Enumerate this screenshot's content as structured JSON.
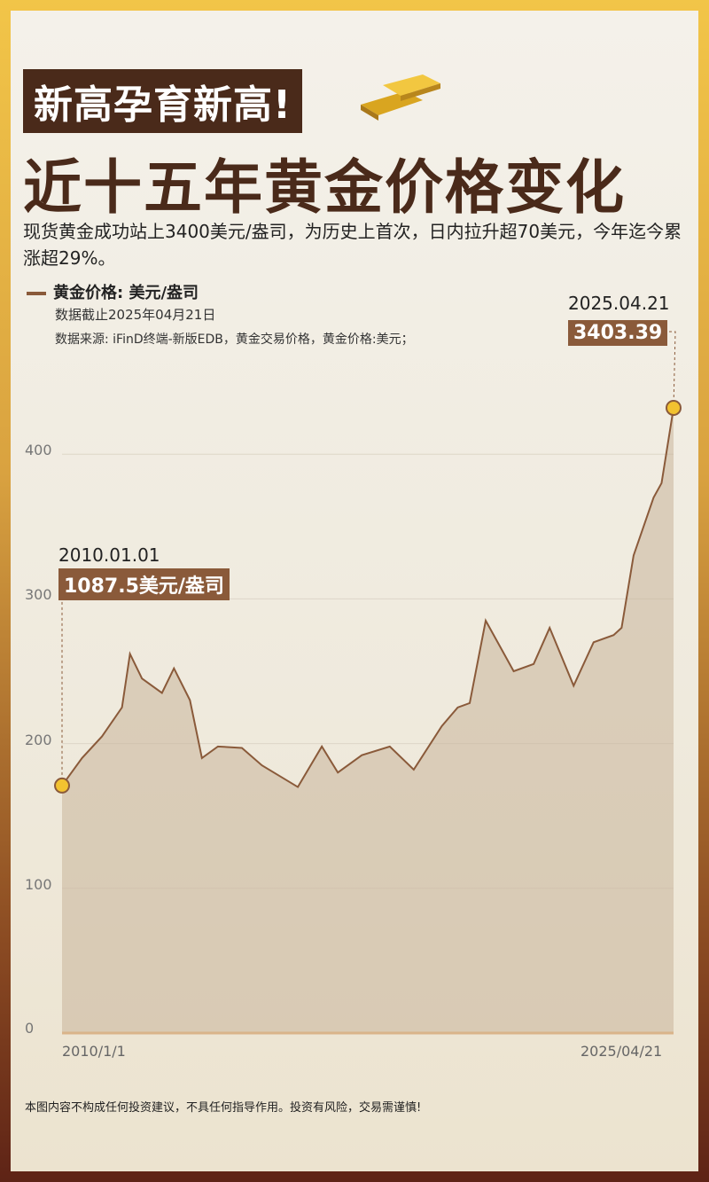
{
  "header": {
    "badge": "新高孕育新高!",
    "title": "近十五年黄金价格变化",
    "description": "现货黄金成功站上3400美元/盎司，为历史上首次，日内拉升超70美元，今年迄今累涨超29%。",
    "icon": "gold-bars-icon"
  },
  "legend": {
    "label": "黄金价格: 美元/盎司",
    "as_of": "数据截止2025年04月21日",
    "source": "数据来源: iFinD终端-新版EDB，黄金交易价格，黄金价格:美元；"
  },
  "colors": {
    "line": "#8a5a3a",
    "fill": "#c9b49a",
    "marker": "#f2c230",
    "badge": "#4a2a1a"
  },
  "chart_data": {
    "type": "area",
    "title": "",
    "ylim": [
      0,
      450
    ],
    "yticks": [
      "0",
      "100",
      "200",
      "300",
      "400"
    ],
    "xticks": [
      "2010/1/1",
      "2025/04/21"
    ],
    "grid": true,
    "series": [
      {
        "name": "黄金价格: 美元/盎司",
        "x": [
          2010.0,
          2010.5,
          2011.0,
          2011.5,
          2011.7,
          2012.0,
          2012.5,
          2012.8,
          2013.2,
          2013.5,
          2013.9,
          2014.5,
          2015.0,
          2015.9,
          2016.5,
          2016.9,
          2017.5,
          2018.2,
          2018.8,
          2019.5,
          2019.9,
          2020.2,
          2020.6,
          2021.0,
          2021.3,
          2021.8,
          2022.2,
          2022.8,
          2023.3,
          2023.8,
          2024.0,
          2024.3,
          2024.8,
          2025.0,
          2025.3
        ],
        "y": [
          171,
          190,
          205,
          225,
          262,
          245,
          235,
          252,
          230,
          190,
          198,
          197,
          185,
          170,
          198,
          180,
          192,
          198,
          182,
          212,
          225,
          228,
          285,
          265,
          250,
          255,
          280,
          240,
          270,
          275,
          280,
          330,
          370,
          380,
          432
        ]
      }
    ],
    "annotations": [
      {
        "date": "2010.01.01",
        "value": "1087.5美元/盎司"
      },
      {
        "date": "2025.04.21",
        "value": "3403.39"
      }
    ]
  },
  "footer": {
    "disclaimer": "本图内容不构成任何投资建议，不具任何指导作用。投资有风险，交易需谨慎!"
  }
}
